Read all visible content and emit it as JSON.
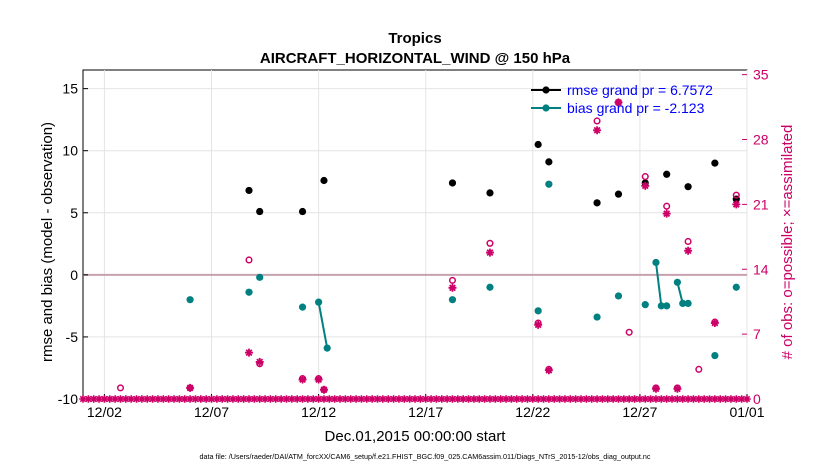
{
  "chart_data": {
    "type": "scatter",
    "title": "Tropics",
    "subtitle": "AIRCRAFT_HORIZONTAL_WIND @ 150 hPa",
    "xlabel": "Dec.01,2015 00:00:00 start",
    "ylabel_left": "rmse and bias (model - observation)",
    "ylabel_right": "# of obs: o=possible; ×=assimilated",
    "footnote": "data file: /Users/raeder/DAI/ATM_forcXX/CAM6_setup/f.e21.FHIST_BGC.f09_025.CAM6assim.011/Diags_NTrS_2015-12/obs_diag_output.nc",
    "xlim": [
      1,
      32
    ],
    "ylim_left": [
      -10,
      16.5
    ],
    "ylim_right": [
      0,
      35.5
    ],
    "x_ticks": [
      {
        "value": 2,
        "label": "12/02"
      },
      {
        "value": 7,
        "label": "12/07"
      },
      {
        "value": 12,
        "label": "12/12"
      },
      {
        "value": 17,
        "label": "12/17"
      },
      {
        "value": 22,
        "label": "12/22"
      },
      {
        "value": 27,
        "label": "12/27"
      },
      {
        "value": 32,
        "label": "01/01"
      }
    ],
    "y_ticks_left": [
      {
        "value": 15,
        "label": "15"
      },
      {
        "value": 10,
        "label": "10"
      },
      {
        "value": 5,
        "label": "5"
      },
      {
        "value": 0,
        "label": "0"
      },
      {
        "value": -5,
        "label": "-5"
      },
      {
        "value": -10,
        "label": "-10"
      }
    ],
    "y_ticks_right": [
      {
        "value": 35,
        "label": "35"
      },
      {
        "value": 28,
        "label": "28"
      },
      {
        "value": 21,
        "label": "21"
      },
      {
        "value": 14,
        "label": "14"
      },
      {
        "value": 7,
        "label": "7"
      },
      {
        "value": 0,
        "label": "0"
      }
    ],
    "legend": [
      {
        "label": "rmse grand pr = 6.7572",
        "color": "#000000"
      },
      {
        "label": "bias grand pr = -2.123",
        "color": "#008080"
      }
    ],
    "zero_line": 0,
    "colors": {
      "rmse": "#000000",
      "bias": "#008080",
      "obs": "#cc0066",
      "zero_line": "#c8a0b0",
      "text_accent": "#0000ff",
      "right_axis": "#cc0066"
    },
    "series": [
      {
        "name": "rmse",
        "points": [
          [
            8.75,
            6.8
          ],
          [
            9.25,
            5.1
          ],
          [
            11.25,
            5.1
          ],
          [
            12.25,
            7.6
          ],
          [
            18.25,
            7.4
          ],
          [
            20.0,
            6.6
          ],
          [
            22.25,
            10.5
          ],
          [
            22.75,
            9.1
          ],
          [
            25.0,
            5.8
          ],
          [
            26.0,
            6.5
          ],
          [
            27.25,
            7.4
          ],
          [
            28.25,
            8.1
          ],
          [
            29.25,
            7.1
          ],
          [
            30.5,
            9.0
          ],
          [
            31.5,
            6.1
          ]
        ],
        "segments": []
      },
      {
        "name": "bias",
        "points": [
          [
            6.0,
            -2.0
          ],
          [
            8.75,
            -1.4
          ],
          [
            9.25,
            -0.2
          ],
          [
            11.25,
            -2.6
          ],
          [
            18.25,
            -2.0
          ],
          [
            20.0,
            -1.0
          ],
          [
            22.25,
            -2.9
          ],
          [
            22.75,
            7.3
          ],
          [
            25.0,
            -3.4
          ],
          [
            26.0,
            -1.7
          ],
          [
            27.25,
            -2.4
          ],
          [
            28.25,
            -2.5
          ],
          [
            29.25,
            -2.3
          ],
          [
            30.5,
            -6.5
          ],
          [
            31.5,
            -1.0
          ]
        ],
        "segments": [
          [
            [
              12.0,
              -2.2
            ],
            [
              12.4,
              -5.9
            ]
          ],
          [
            [
              27.75,
              1.0
            ],
            [
              28.0,
              -2.5
            ]
          ],
          [
            [
              28.75,
              -0.6
            ],
            [
              29.0,
              -2.3
            ]
          ]
        ]
      },
      {
        "name": "obs_possible",
        "points": [
          [
            2.75,
            1.2
          ],
          [
            6.0,
            1.2
          ],
          [
            8.75,
            15.0
          ],
          [
            9.25,
            3.8
          ],
          [
            11.25,
            2.2
          ],
          [
            12.0,
            2.2
          ],
          [
            12.25,
            1.0
          ],
          [
            18.25,
            12.8
          ],
          [
            20.0,
            16.8
          ],
          [
            22.25,
            8.2
          ],
          [
            22.75,
            3.2
          ],
          [
            25.0,
            30.0
          ],
          [
            26.0,
            32.0
          ],
          [
            26.5,
            7.2
          ],
          [
            27.25,
            24.0
          ],
          [
            27.75,
            1.2
          ],
          [
            28.25,
            20.8
          ],
          [
            28.75,
            1.2
          ],
          [
            29.25,
            17.0
          ],
          [
            29.75,
            3.2
          ],
          [
            30.5,
            8.3
          ],
          [
            31.5,
            22.0
          ]
        ]
      },
      {
        "name": "obs_assimilated",
        "points": [
          [
            6.0,
            1.2
          ],
          [
            8.75,
            5.0
          ],
          [
            9.25,
            4.0
          ],
          [
            11.25,
            2.1
          ],
          [
            12.0,
            2.1
          ],
          [
            12.25,
            1.0
          ],
          [
            18.25,
            12.0
          ],
          [
            20.0,
            15.8
          ],
          [
            22.25,
            8.0
          ],
          [
            22.75,
            3.1
          ],
          [
            25.0,
            29.0
          ],
          [
            26.0,
            32.0
          ],
          [
            27.25,
            23.0
          ],
          [
            27.75,
            1.1
          ],
          [
            28.25,
            20.0
          ],
          [
            28.75,
            1.1
          ],
          [
            29.25,
            16.0
          ],
          [
            30.5,
            8.2
          ],
          [
            31.5,
            21.0
          ]
        ]
      },
      {
        "name": "obs_zero_baseline",
        "x_start": 1.0,
        "x_end": 32.0,
        "x_step": 0.25,
        "value": 0
      }
    ]
  }
}
